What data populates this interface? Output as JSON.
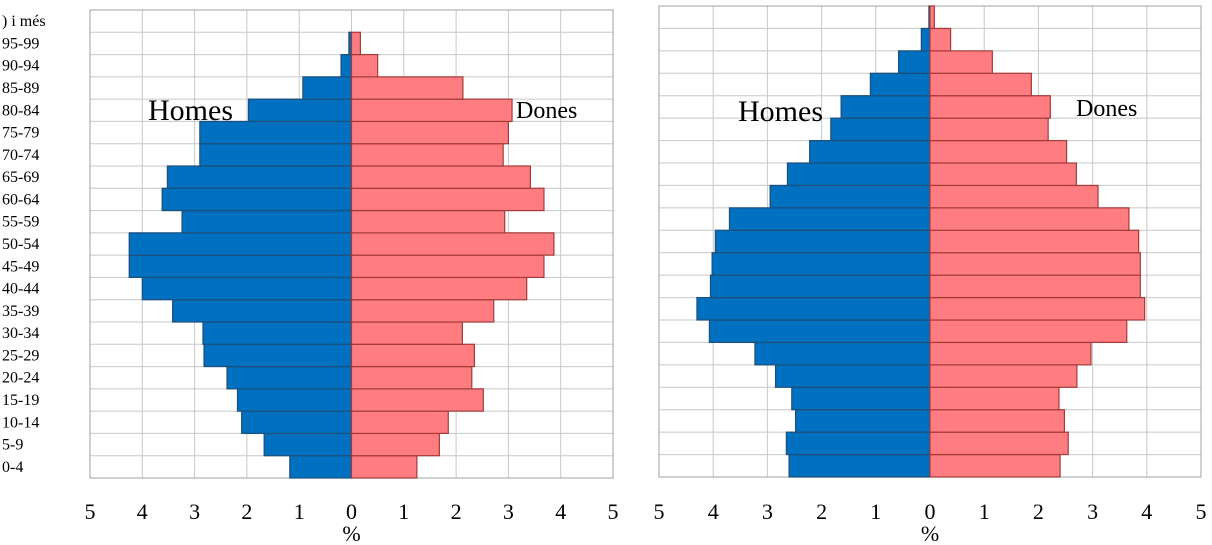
{
  "chart_data": [
    {
      "type": "bar",
      "orientation": "horizontal-pyramid",
      "categories": [
        "0-4",
        "5-9",
        "10-14",
        "15-19",
        "20-24",
        "25-29",
        "30-34",
        "35-39",
        "40-44",
        "45-49",
        "50-54",
        "55-59",
        "60-64",
        "65-69",
        "70-74",
        "75-79",
        "80-84",
        "85-89",
        "90-94",
        "95-99",
        ") i més"
      ],
      "series": [
        {
          "name": "Homes",
          "color": "#0070c0",
          "values": [
            1.18,
            1.67,
            2.1,
            2.18,
            2.38,
            2.82,
            2.84,
            3.42,
            4.0,
            4.25,
            4.25,
            3.24,
            3.62,
            3.52,
            2.9,
            2.9,
            1.97,
            0.93,
            0.2,
            0.05,
            0
          ]
        },
        {
          "name": "Dones",
          "color": "#ff7c80",
          "values": [
            1.25,
            1.68,
            1.85,
            2.52,
            2.3,
            2.35,
            2.12,
            2.72,
            3.35,
            3.68,
            3.87,
            2.93,
            3.68,
            3.42,
            2.9,
            3.0,
            3.07,
            2.13,
            0.5,
            0.17,
            0
          ]
        }
      ],
      "xlabel": "%",
      "xticks": [
        "5",
        "4",
        "3",
        "2",
        "1",
        "0",
        "1",
        "2",
        "3",
        "4",
        "5"
      ],
      "xlim": [
        -5,
        5
      ],
      "grid": true
    },
    {
      "type": "bar",
      "orientation": "horizontal-pyramid",
      "categories": [
        "0-4",
        "5-9",
        "10-14",
        "15-19",
        "20-24",
        "25-29",
        "30-34",
        "35-39",
        "40-44",
        "45-49",
        "50-54",
        "55-59",
        "60-64",
        "65-69",
        "70-74",
        "75-79",
        "80-84",
        "85-89",
        "90-94",
        "95-99",
        ") i més"
      ],
      "series": [
        {
          "name": "Homes",
          "color": "#0070c0",
          "values": [
            2.6,
            2.65,
            2.48,
            2.55,
            2.85,
            3.23,
            4.07,
            4.3,
            4.05,
            4.02,
            3.96,
            3.7,
            2.95,
            2.63,
            2.22,
            1.83,
            1.64,
            1.1,
            0.58,
            0.16,
            0.02
          ]
        },
        {
          "name": "Dones",
          "color": "#ff7c80",
          "values": [
            2.4,
            2.55,
            2.48,
            2.38,
            2.71,
            2.97,
            3.63,
            3.96,
            3.88,
            3.88,
            3.85,
            3.67,
            3.1,
            2.7,
            2.52,
            2.18,
            2.22,
            1.87,
            1.15,
            0.38,
            0.08
          ]
        }
      ],
      "xlabel": "%",
      "xticks": [
        "5",
        "4",
        "3",
        "2",
        "1",
        "0",
        "1",
        "2",
        "3",
        "4",
        "5"
      ],
      "xlim": [
        -5,
        5
      ],
      "grid": true
    }
  ]
}
